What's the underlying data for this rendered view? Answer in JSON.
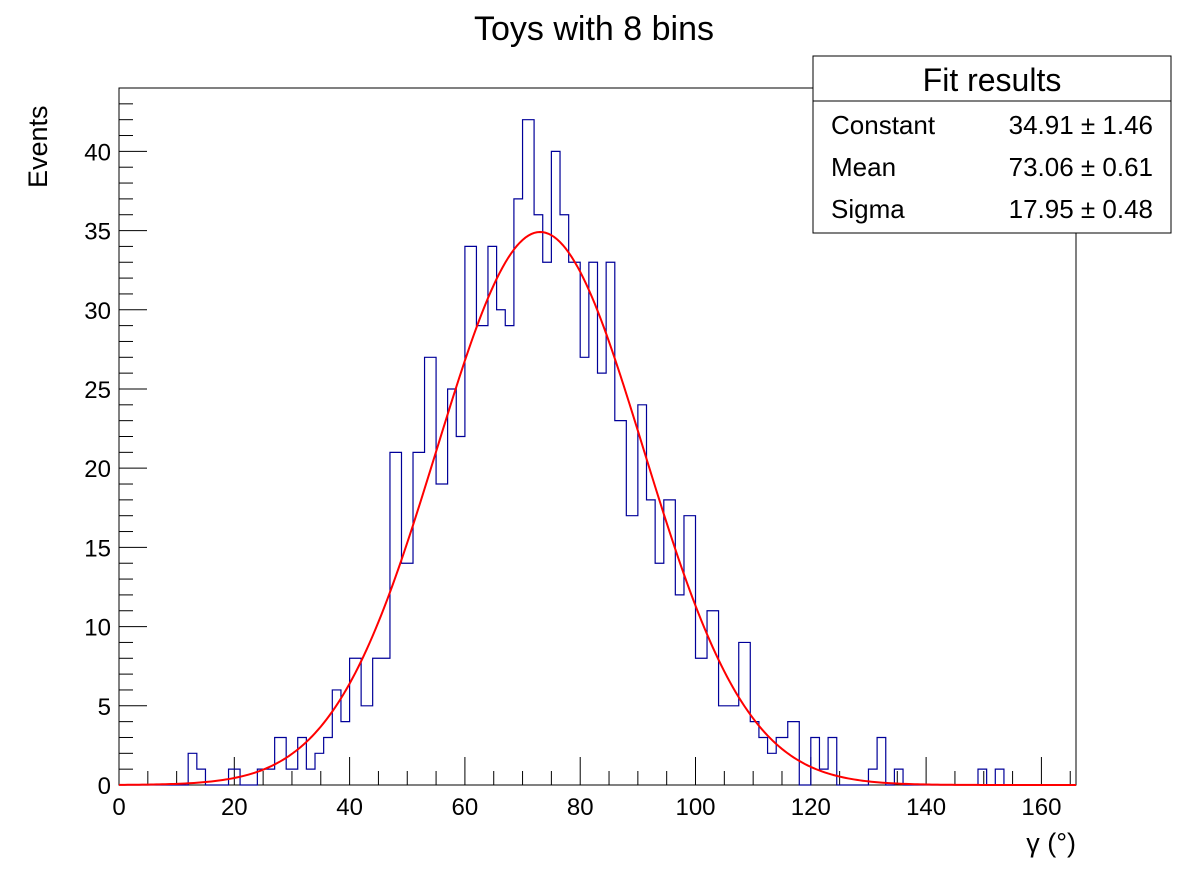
{
  "chart_data": {
    "type": "histogram",
    "title": "Toys with 8 bins",
    "xlabel": "γ (°)",
    "ylabel": "Events",
    "xlim": [
      0,
      166
    ],
    "ylim": [
      0,
      44
    ],
    "x_ticks": [
      0,
      20,
      40,
      60,
      80,
      100,
      120,
      140,
      160
    ],
    "y_ticks": [
      0,
      5,
      10,
      15,
      20,
      25,
      30,
      35,
      40
    ],
    "grid": false,
    "histogram": {
      "name": "toys",
      "color": "#000099",
      "bin_start": 0,
      "bin_width": 1.77,
      "counts": [
        0,
        0,
        0,
        0,
        0,
        0,
        0,
        0,
        0,
        0,
        0,
        0,
        0,
        0,
        0,
        0,
        0,
        0,
        0,
        0,
        0,
        0,
        0,
        0,
        0,
        0,
        0,
        0,
        0,
        0,
        0,
        0,
        0,
        0,
        0,
        0,
        0,
        0,
        0,
        0,
        0,
        0,
        0,
        0,
        0,
        0,
        0,
        0,
        0,
        0,
        0,
        0,
        0,
        0,
        0,
        0,
        0,
        0,
        0,
        0,
        0,
        0,
        0,
        0,
        0,
        0,
        0,
        0,
        0,
        0,
        0,
        0,
        0,
        0,
        0,
        0,
        0,
        0,
        0,
        0,
        0,
        0,
        0,
        0,
        0,
        0,
        0,
        0,
        0,
        0,
        0,
        0,
        0,
        0
      ],
      "bins": [
        {
          "x": 12,
          "y": 2
        },
        {
          "x": 13.5,
          "y": 1
        },
        {
          "x": 15,
          "y": 0
        },
        {
          "x": 19,
          "y": 1
        },
        {
          "x": 21,
          "y": 0
        },
        {
          "x": 24,
          "y": 1
        },
        {
          "x": 27,
          "y": 3
        },
        {
          "x": 29,
          "y": 1
        },
        {
          "x": 31,
          "y": 3
        },
        {
          "x": 32.5,
          "y": 1
        },
        {
          "x": 34,
          "y": 2
        },
        {
          "x": 35.5,
          "y": 3
        },
        {
          "x": 37,
          "y": 6
        },
        {
          "x": 38.5,
          "y": 4
        },
        {
          "x": 40,
          "y": 8
        },
        {
          "x": 42,
          "y": 5
        },
        {
          "x": 44,
          "y": 8
        },
        {
          "x": 47,
          "y": 21
        },
        {
          "x": 49,
          "y": 14
        },
        {
          "x": 51,
          "y": 21
        },
        {
          "x": 53,
          "y": 27
        },
        {
          "x": 55,
          "y": 19
        },
        {
          "x": 57,
          "y": 25
        },
        {
          "x": 58.5,
          "y": 22
        },
        {
          "x": 60,
          "y": 34
        },
        {
          "x": 62,
          "y": 29
        },
        {
          "x": 64,
          "y": 34
        },
        {
          "x": 65.5,
          "y": 30
        },
        {
          "x": 67,
          "y": 29
        },
        {
          "x": 68.5,
          "y": 37
        },
        {
          "x": 70,
          "y": 42
        },
        {
          "x": 72,
          "y": 36
        },
        {
          "x": 73.5,
          "y": 33
        },
        {
          "x": 75,
          "y": 40
        },
        {
          "x": 76.5,
          "y": 36
        },
        {
          "x": 78,
          "y": 33
        },
        {
          "x": 80,
          "y": 27
        },
        {
          "x": 81.5,
          "y": 33
        },
        {
          "x": 83,
          "y": 26
        },
        {
          "x": 84.5,
          "y": 33
        },
        {
          "x": 86,
          "y": 23
        },
        {
          "x": 88,
          "y": 17
        },
        {
          "x": 90,
          "y": 24
        },
        {
          "x": 91.5,
          "y": 18
        },
        {
          "x": 93,
          "y": 14
        },
        {
          "x": 94.5,
          "y": 18
        },
        {
          "x": 96.5,
          "y": 12
        },
        {
          "x": 98,
          "y": 17
        },
        {
          "x": 100,
          "y": 8
        },
        {
          "x": 102,
          "y": 11
        },
        {
          "x": 104,
          "y": 5
        },
        {
          "x": 106,
          "y": 5
        },
        {
          "x": 107.5,
          "y": 9
        },
        {
          "x": 109.5,
          "y": 4
        },
        {
          "x": 111,
          "y": 3
        },
        {
          "x": 112.5,
          "y": 2
        },
        {
          "x": 114,
          "y": 3
        },
        {
          "x": 116,
          "y": 4
        },
        {
          "x": 118,
          "y": 0
        },
        {
          "x": 120,
          "y": 3
        },
        {
          "x": 121.5,
          "y": 1
        },
        {
          "x": 123,
          "y": 3
        },
        {
          "x": 124.5,
          "y": 0
        },
        {
          "x": 130,
          "y": 1
        },
        {
          "x": 131.5,
          "y": 3
        },
        {
          "x": 133,
          "y": 0
        },
        {
          "x": 134.5,
          "y": 1
        },
        {
          "x": 136,
          "y": 0
        },
        {
          "x": 149,
          "y": 1
        },
        {
          "x": 150.5,
          "y": 0
        },
        {
          "x": 152,
          "y": 1
        },
        {
          "x": 153.5,
          "y": 0
        }
      ]
    },
    "fit": {
      "name": "gaus",
      "color": "#ff0000",
      "constant": 34.91,
      "mean": 73.06,
      "sigma": 17.95
    },
    "stats_box": {
      "title": "Fit results",
      "placement": "top-right",
      "rows": [
        {
          "label": "Constant",
          "value": "34.91 ± 1.46"
        },
        {
          "label": "Mean",
          "value": "73.06 ± 0.61"
        },
        {
          "label": "Sigma",
          "value": "17.95 ± 0.48"
        }
      ]
    }
  }
}
